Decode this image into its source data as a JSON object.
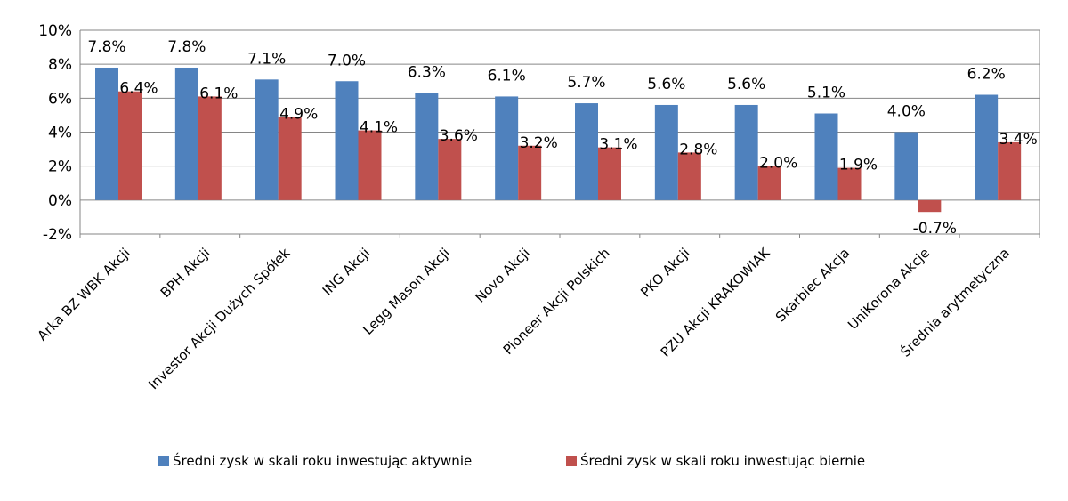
{
  "chart_data": {
    "type": "bar",
    "title": "",
    "xlabel": "",
    "ylabel": "",
    "ylim": [
      -2,
      10
    ],
    "y_ticks": [
      -2,
      0,
      2,
      4,
      6,
      8,
      10
    ],
    "y_tick_format": "percent",
    "grid": "horizontal",
    "legend_position": "bottom",
    "categories": [
      "Arka BZ WBK Akcji",
      "BPH Akcji",
      "Investor Akcji Dużych Spółek",
      "ING Akcji",
      "Legg Mason Akcji",
      "Novo Akcji",
      "Pioneer Akcji Polskich",
      "PKO Akcji",
      "PZU Akcji KRAKOWIAK",
      "Skarbiec Akcja",
      "UniKorona Akcje",
      "Średnia arytmetyczna"
    ],
    "series": [
      {
        "name": "Średni zysk w skali roku inwestując aktywnie",
        "color": "#4F81BD",
        "values": [
          7.8,
          7.8,
          7.1,
          7.0,
          6.3,
          6.1,
          5.7,
          5.6,
          5.6,
          5.1,
          4.0,
          6.2
        ]
      },
      {
        "name": "Średni zysk w skali roku inwestując biernie",
        "color": "#C0504D",
        "values": [
          6.4,
          6.1,
          4.9,
          4.1,
          3.6,
          3.2,
          3.1,
          2.8,
          2.0,
          1.9,
          -0.7,
          3.4
        ]
      }
    ]
  }
}
